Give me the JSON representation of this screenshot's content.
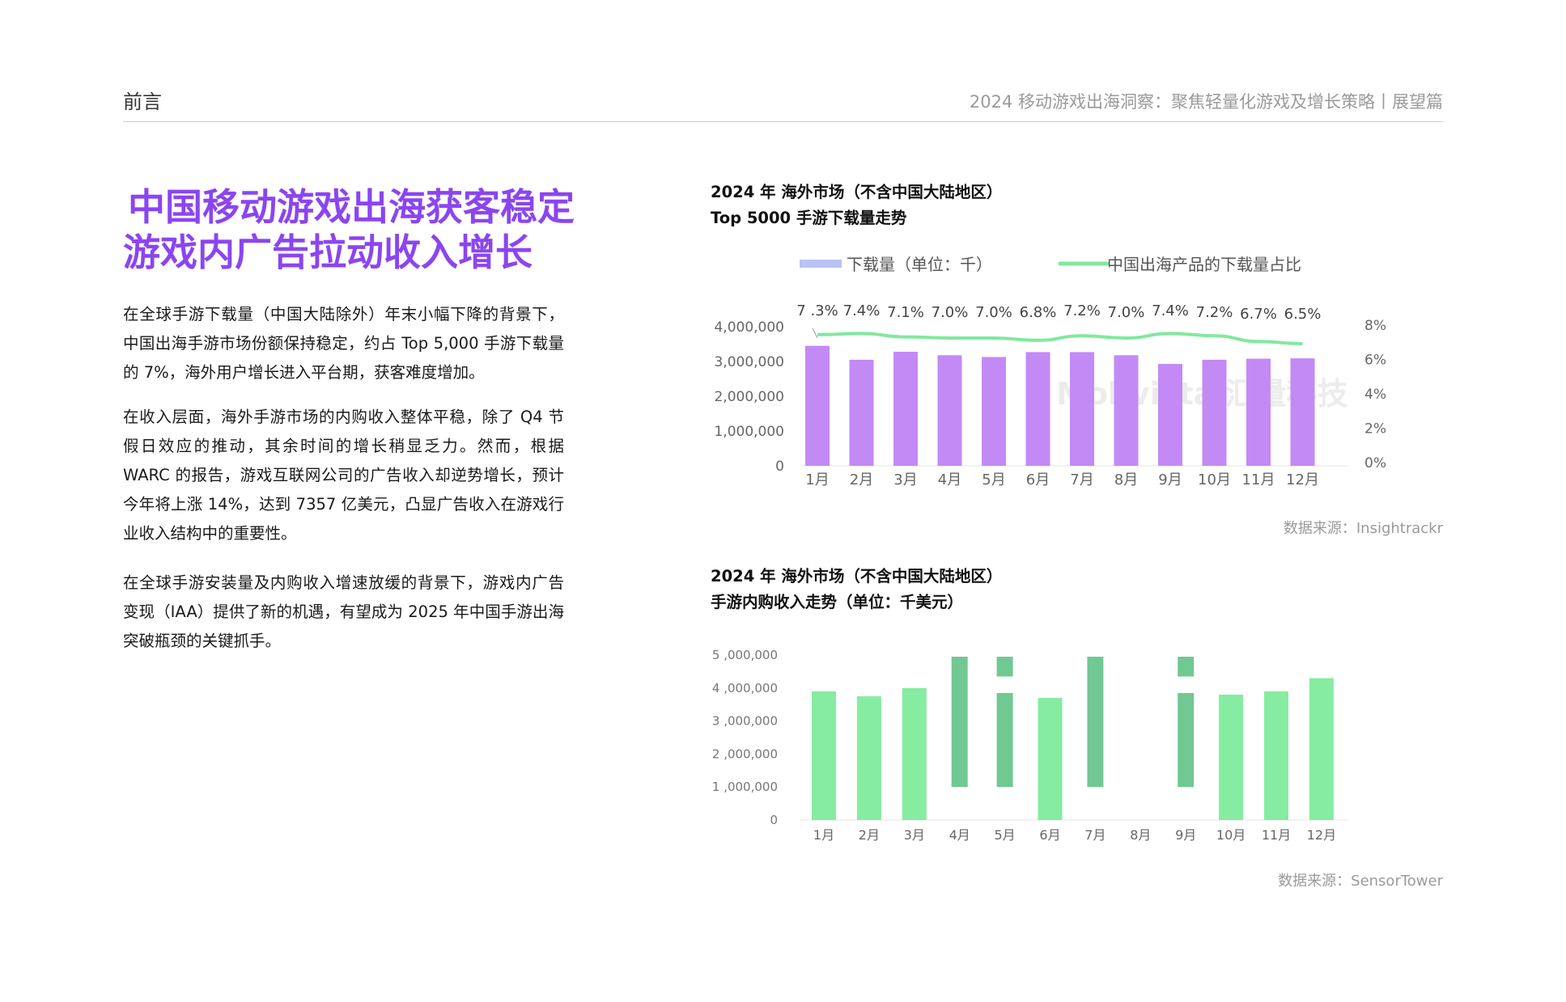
{
  "header": {
    "section": "前言",
    "report_title": "2024 移动游戏出海洞察：聚焦轻量化游戏及增长策略丨展望篇"
  },
  "headline": {
    "line1": "中国移动游戏出海获客稳定",
    "line2": "游戏内广告拉动收入增长"
  },
  "paragraphs": [
    "在全球手游下载量（中国大陆除外）年末小幅下降的背景下，中国出海手游市场份额保持稳定，约占 Top 5,000 手游下载量的 7%，海外用户增长进入平台期，获客难度增加。",
    "在收入层面，海外手游市场的内购收入整体平稳，除了 Q4 节假日效应的推动，其余时间的增长稍显乏力。然而，根据 WARC 的报告，游戏互联网公司的广告收入却逆势增长，预计今年将上涨 14%，达到 7357 亿美元，凸显广告收入在游戏行业收入结构中的重要性。",
    "在全球手游安装量及内购收入增速放缓的背景下，游戏内广告变现（IAA）提供了新的机遇，有望成为 2025 年中国手游出海突破瓶颈的关键抓手。"
  ],
  "chart1": {
    "title_line1": "2024 年 海外市场（不含中国大陆地区）",
    "title_line2": "Top 5000 手游下载量走势",
    "watermark": "Mobvista 汇量科技",
    "source": "数据来源：Insightrackr"
  },
  "chart2": {
    "title_line1": "2024 年 海外市场（不含中国大陆地区）",
    "title_line2": "手游内购收入走势（单位：千美元）",
    "source": "数据来源：SensorTower"
  },
  "chart_data": [
    {
      "type": "bar",
      "categories": [
        "1月",
        "2月",
        "3月",
        "4月",
        "5月",
        "6月",
        "7月",
        "8月",
        "9月",
        "10月",
        "11月",
        "12月"
      ],
      "series": [
        {
          "name": "下载量（单位：千）",
          "type": "bar",
          "axis": "left",
          "values": [
            3450000,
            3050000,
            3280000,
            3180000,
            3130000,
            3270000,
            3270000,
            3180000,
            2930000,
            3050000,
            3080000,
            3090000
          ],
          "color": "#c38af5"
        },
        {
          "name": "中国出海产品的下载量占比",
          "type": "line",
          "axis": "right",
          "values": [
            7.3,
            7.4,
            7.1,
            7.0,
            7.0,
            6.8,
            7.2,
            7.0,
            7.4,
            7.2,
            6.7,
            6.5
          ],
          "labels": [
            "7  .3%",
            "7.4%",
            "7.1%",
            "7.0%",
            "7.0%",
            "6.8%",
            "7.2%",
            "7.0%",
            "7.4%",
            "7.2%",
            "6.7%",
            "6.5%"
          ],
          "color": "#82e89f"
        }
      ],
      "y_left": {
        "ticks": [
          0,
          1000000,
          2000000,
          3000000,
          4000000
        ],
        "tick_labels": [
          "0",
          "1,000,000",
          "2,000,000",
          "3,000,000",
          "4,000,000"
        ]
      },
      "y_right": {
        "ticks": [
          0,
          2,
          4,
          6,
          8
        ],
        "tick_labels": [
          "0%",
          "2%",
          "4%",
          "6%",
          "8%"
        ]
      },
      "legend_position": "top"
    },
    {
      "type": "bar",
      "categories": [
        "1月",
        "2月",
        "3月",
        "4月",
        "5月",
        "6月",
        "7月",
        "8月",
        "9月",
        "10月",
        "11月",
        "12月"
      ],
      "values": [
        3900000,
        3750000,
        4000000,
        null,
        null,
        3700000,
        null,
        null,
        null,
        3800000,
        3900000,
        4300000
      ],
      "floating_segments": [
        {
          "category": "4月",
          "range": [
            1000000,
            4950000
          ]
        },
        {
          "category": "5月",
          "range": [
            1000000,
            3850000
          ]
        },
        {
          "category": "5月",
          "range": [
            4350000,
            4950000
          ]
        },
        {
          "category": "7月",
          "range": [
            1000000,
            4950000
          ]
        },
        {
          "category": "9月",
          "range": [
            1000000,
            3850000
          ]
        },
        {
          "category": "9月",
          "range": [
            4350000,
            4950000
          ]
        }
      ],
      "y_ticks": [
        0,
        1000000,
        2000000,
        3000000,
        4000000,
        5000000
      ],
      "y_tick_labels": [
        "0",
        "1 ,000,000",
        "2 ,000,000",
        "3 ,000,000",
        "4 ,000,000",
        "5 ,000,000"
      ],
      "colors": {
        "bar": "#86eca1",
        "floating": "#72c893"
      }
    }
  ]
}
